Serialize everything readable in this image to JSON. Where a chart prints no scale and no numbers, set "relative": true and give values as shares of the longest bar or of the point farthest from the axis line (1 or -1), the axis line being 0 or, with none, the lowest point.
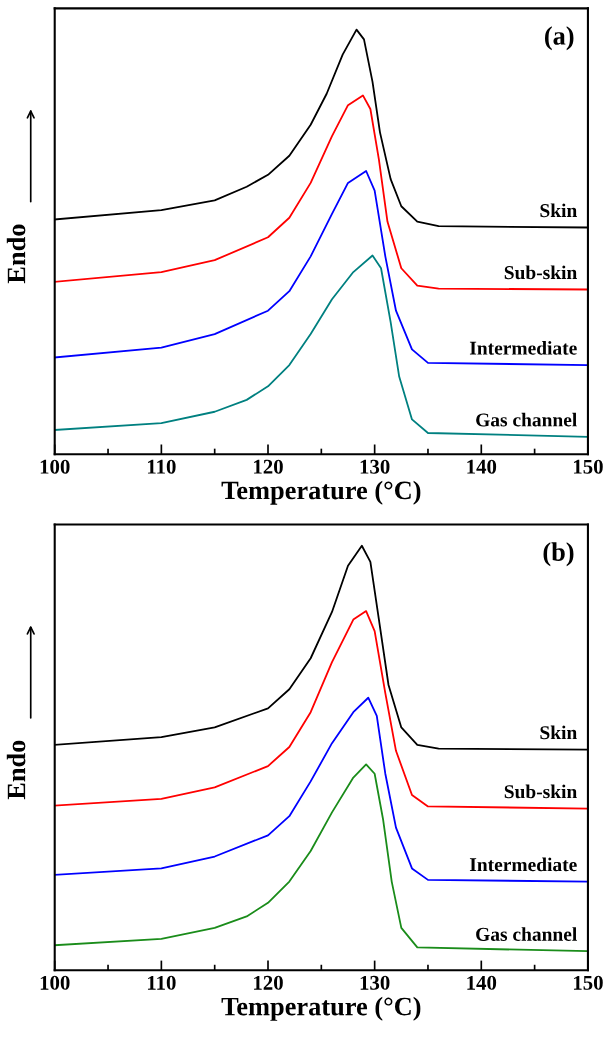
{
  "chart_data": [
    {
      "type": "line",
      "relative": true,
      "xlabel": "Temperature (°C)",
      "ylabel": "Endo",
      "annotations": [
        "(a)"
      ],
      "xlim": [
        100,
        150
      ],
      "xticks": [
        100,
        {
          "value": 105,
          "label": null
        },
        110,
        {
          "value": 115,
          "label": null
        },
        120,
        {
          "value": 125,
          "label": null
        },
        130,
        {
          "value": 135,
          "label": null
        },
        140,
        {
          "value": 145,
          "label": null
        },
        150
      ],
      "tick_labels": "x",
      "grid": false,
      "legend": false,
      "series": [
        {
          "name": "Skin",
          "color": "#000000",
          "x": [
            100,
            110,
            115,
            118,
            120,
            122,
            124,
            125.5,
            127,
            128.3,
            129,
            129.8,
            130.5,
            131.5,
            132.5,
            134,
            136,
            150
          ],
          "values": [
            0.553,
            0.575,
            0.598,
            0.63,
            0.658,
            0.703,
            0.776,
            0.849,
            0.941,
            1.0,
            0.977,
            0.877,
            0.758,
            0.648,
            0.584,
            0.548,
            0.537,
            0.534
          ]
        },
        {
          "name": "Sub-skin",
          "color": "#ff0000",
          "x": [
            100,
            110,
            115,
            120,
            122,
            124,
            126,
            127.5,
            128.9,
            129.6,
            130.4,
            131.2,
            132.5,
            134,
            136,
            150
          ],
          "values": [
            0.406,
            0.429,
            0.457,
            0.511,
            0.557,
            0.639,
            0.749,
            0.822,
            0.845,
            0.813,
            0.694,
            0.548,
            0.438,
            0.397,
            0.39,
            0.388
          ]
        },
        {
          "name": "Intermediate",
          "color": "#0000ff",
          "x": [
            100,
            110,
            115,
            120,
            122,
            124,
            126,
            127.5,
            129.2,
            130,
            131,
            132,
            133.5,
            135,
            150
          ],
          "values": [
            0.228,
            0.251,
            0.283,
            0.338,
            0.384,
            0.466,
            0.566,
            0.639,
            0.667,
            0.621,
            0.466,
            0.338,
            0.247,
            0.215,
            0.21
          ]
        },
        {
          "name": "Gas channel",
          "color": "#008080",
          "x": [
            100,
            110,
            115,
            118,
            120,
            122,
            124,
            126,
            128,
            129.8,
            130.6,
            131.5,
            132.3,
            133.5,
            135,
            150
          ],
          "values": [
            0.057,
            0.073,
            0.1,
            0.128,
            0.16,
            0.21,
            0.283,
            0.365,
            0.429,
            0.468,
            0.438,
            0.311,
            0.183,
            0.082,
            0.05,
            0.041
          ]
        }
      ]
    },
    {
      "type": "line",
      "relative": true,
      "xlabel": "Temperature (°C)",
      "ylabel": "Endo",
      "annotations": [
        "(b)"
      ],
      "xlim": [
        100,
        150
      ],
      "xticks": [
        100,
        {
          "value": 105,
          "label": null
        },
        110,
        {
          "value": 115,
          "label": null
        },
        120,
        {
          "value": 125,
          "label": null
        },
        130,
        {
          "value": 135,
          "label": null
        },
        140,
        {
          "value": 145,
          "label": null
        },
        150
      ],
      "tick_labels": "x",
      "grid": false,
      "legend": false,
      "series": [
        {
          "name": "Skin",
          "color": "#000000",
          "x": [
            100,
            110,
            115,
            120,
            122,
            124,
            126,
            127.5,
            128.8,
            129.6,
            130.4,
            131.3,
            132.5,
            134,
            136,
            150
          ],
          "values": [
            0.531,
            0.549,
            0.572,
            0.617,
            0.662,
            0.735,
            0.844,
            0.953,
            1.0,
            0.962,
            0.826,
            0.672,
            0.572,
            0.531,
            0.522,
            0.52
          ]
        },
        {
          "name": "Sub-skin",
          "color": "#ff0000",
          "x": [
            100,
            110,
            115,
            120,
            122,
            124,
            126,
            128,
            129.2,
            130,
            131,
            132,
            133.5,
            135,
            150
          ],
          "values": [
            0.388,
            0.404,
            0.431,
            0.481,
            0.526,
            0.608,
            0.726,
            0.826,
            0.846,
            0.799,
            0.653,
            0.517,
            0.413,
            0.386,
            0.381
          ]
        },
        {
          "name": "Intermediate",
          "color": "#0000ff",
          "x": [
            100,
            110,
            115,
            120,
            122,
            124,
            126,
            128,
            129.4,
            130.2,
            131,
            132,
            133.5,
            135,
            150
          ],
          "values": [
            0.225,
            0.24,
            0.268,
            0.318,
            0.363,
            0.445,
            0.535,
            0.608,
            0.642,
            0.599,
            0.463,
            0.336,
            0.24,
            0.213,
            0.209
          ]
        },
        {
          "name": "Gas channel",
          "color": "#1a8c1a",
          "x": [
            100,
            110,
            115,
            118,
            120,
            122,
            124,
            126,
            128,
            129.2,
            130,
            130.8,
            131.6,
            132.5,
            134,
            150
          ],
          "values": [
            0.059,
            0.074,
            0.1,
            0.127,
            0.159,
            0.209,
            0.281,
            0.372,
            0.454,
            0.485,
            0.463,
            0.354,
            0.209,
            0.1,
            0.054,
            0.045
          ]
        }
      ]
    }
  ]
}
